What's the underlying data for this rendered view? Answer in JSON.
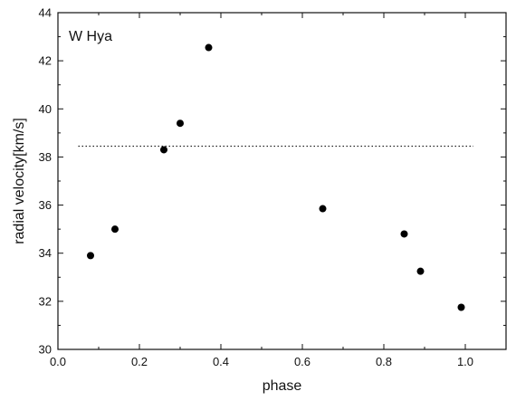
{
  "chart_data": {
    "type": "scatter",
    "annotation": "W Hya",
    "xlabel": "phase",
    "ylabel": "radial velocity[km/s]",
    "xlim": [
      0.0,
      1.1
    ],
    "ylim": [
      30,
      44
    ],
    "xticks": [
      0.0,
      0.2,
      0.4,
      0.6,
      0.8,
      1.0
    ],
    "xtick_labels": [
      "0.0",
      "0.2",
      "0.4",
      "0.6",
      "0.8",
      "1.0"
    ],
    "yticks": [
      30,
      32,
      34,
      36,
      38,
      40,
      42,
      44
    ],
    "ytick_labels": [
      "30",
      "32",
      "34",
      "36",
      "38",
      "40",
      "42",
      "44"
    ],
    "grid": false,
    "series": [
      {
        "points": [
          {
            "x": 0.08,
            "y": 33.9
          },
          {
            "x": 0.14,
            "y": 35.0
          },
          {
            "x": 0.26,
            "y": 38.3
          },
          {
            "x": 0.3,
            "y": 39.4
          },
          {
            "x": 0.37,
            "y": 42.55
          },
          {
            "x": 0.65,
            "y": 35.85
          },
          {
            "x": 0.85,
            "y": 34.8
          },
          {
            "x": 0.89,
            "y": 33.25
          },
          {
            "x": 0.99,
            "y": 31.75
          }
        ]
      }
    ],
    "reference_line": {
      "y": 38.45,
      "x_from": 0.05,
      "x_to": 1.02,
      "style": "dotted"
    },
    "colors": {
      "marker": "#000000",
      "axes": "#111111"
    }
  }
}
